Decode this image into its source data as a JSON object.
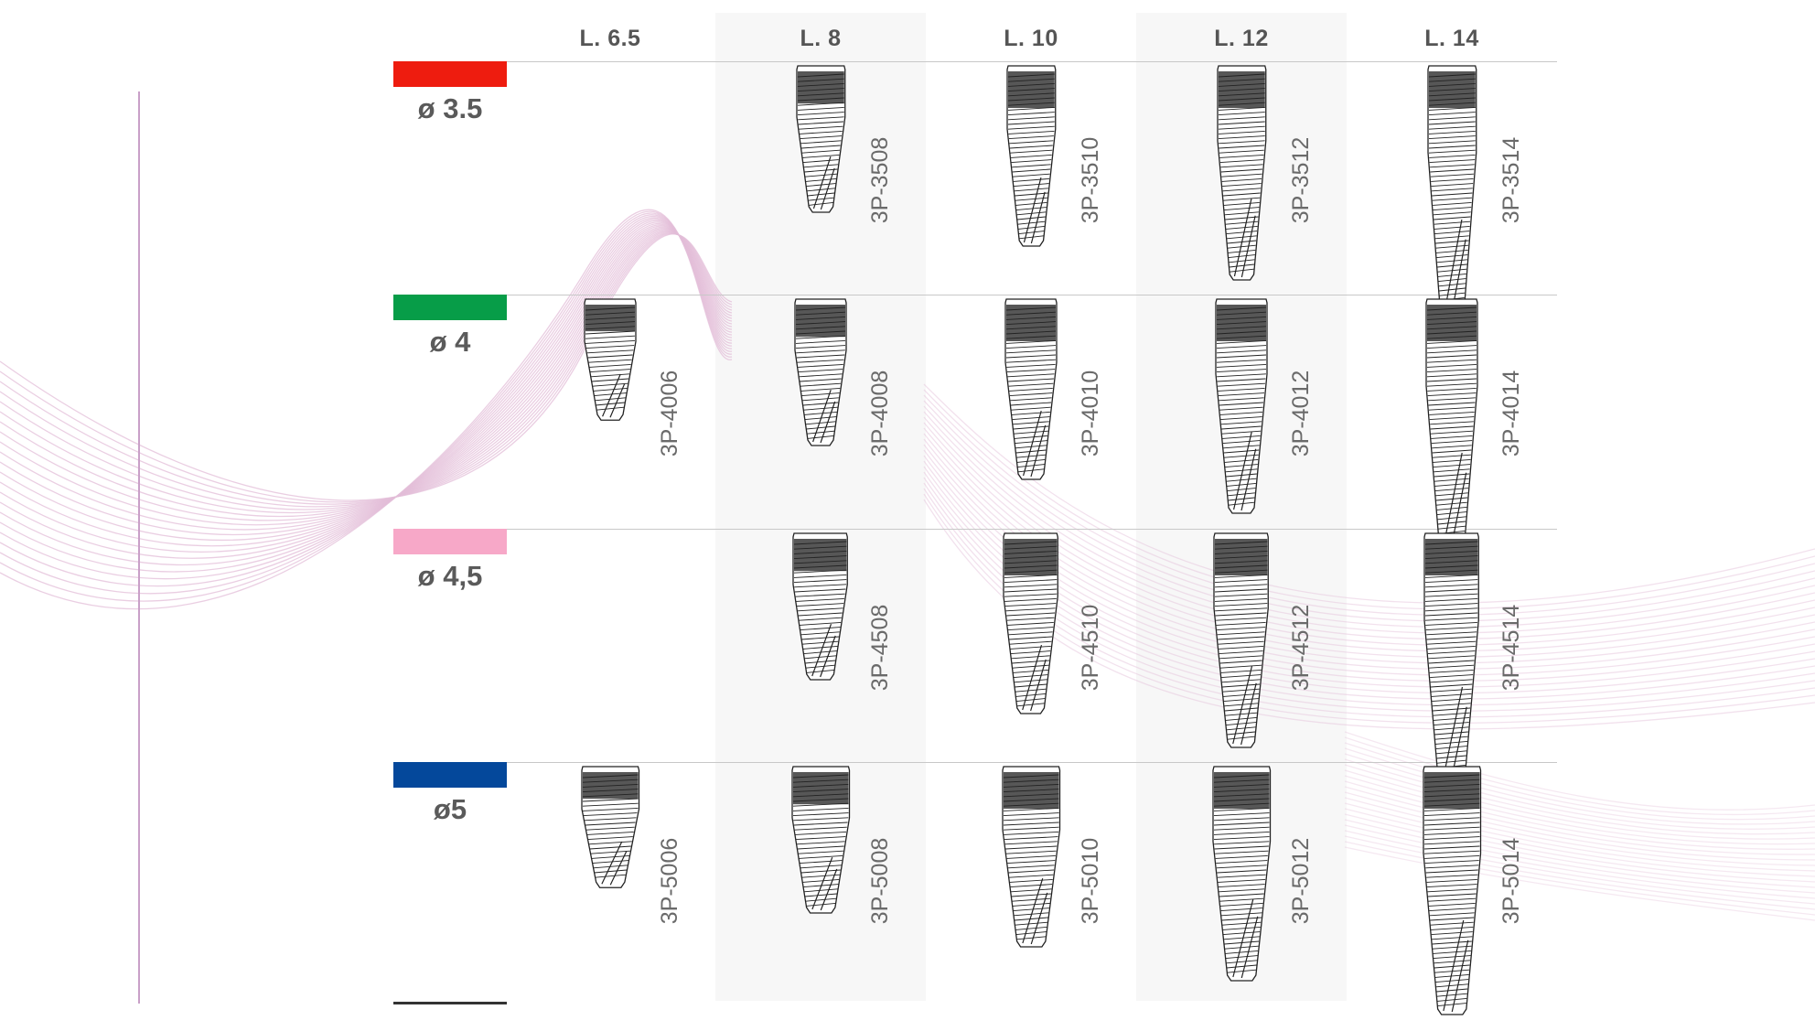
{
  "columns": [
    {
      "label": "L. 6.5",
      "length": 6.5
    },
    {
      "label": "L. 8",
      "length": 8
    },
    {
      "label": "L. 10",
      "length": 10
    },
    {
      "label": "L. 12",
      "length": 12
    },
    {
      "label": "L. 14",
      "length": 14
    }
  ],
  "rows": [
    {
      "diameter_label": "ø 3.5",
      "diameter": 3.5,
      "color": "#ee1c0f",
      "codes": [
        "",
        "3P-3508",
        "3P-3510",
        "3P-3512",
        "3P-3514"
      ]
    },
    {
      "diameter_label": "ø 4",
      "diameter": 4,
      "color": "#079d48",
      "codes": [
        "3P-4006",
        "3P-4008",
        "3P-4010",
        "3P-4012",
        "3P-4014"
      ]
    },
    {
      "diameter_label": "ø 4,5",
      "diameter": 4.5,
      "color": "#f7a8c8",
      "codes": [
        "",
        "3P-4508",
        "3P-4510",
        "3P-4512",
        "3P-4514"
      ]
    },
    {
      "diameter_label": "ø5",
      "diameter": 5,
      "color": "#04489b",
      "codes": [
        "3P-5006",
        "3P-5008",
        "3P-5010",
        "3P-5012",
        "3P-5014"
      ]
    }
  ],
  "colors": {
    "accent_line": "#c9a0c8",
    "wave": "#e3bdd8",
    "grid_line": "#c8c8c8"
  }
}
